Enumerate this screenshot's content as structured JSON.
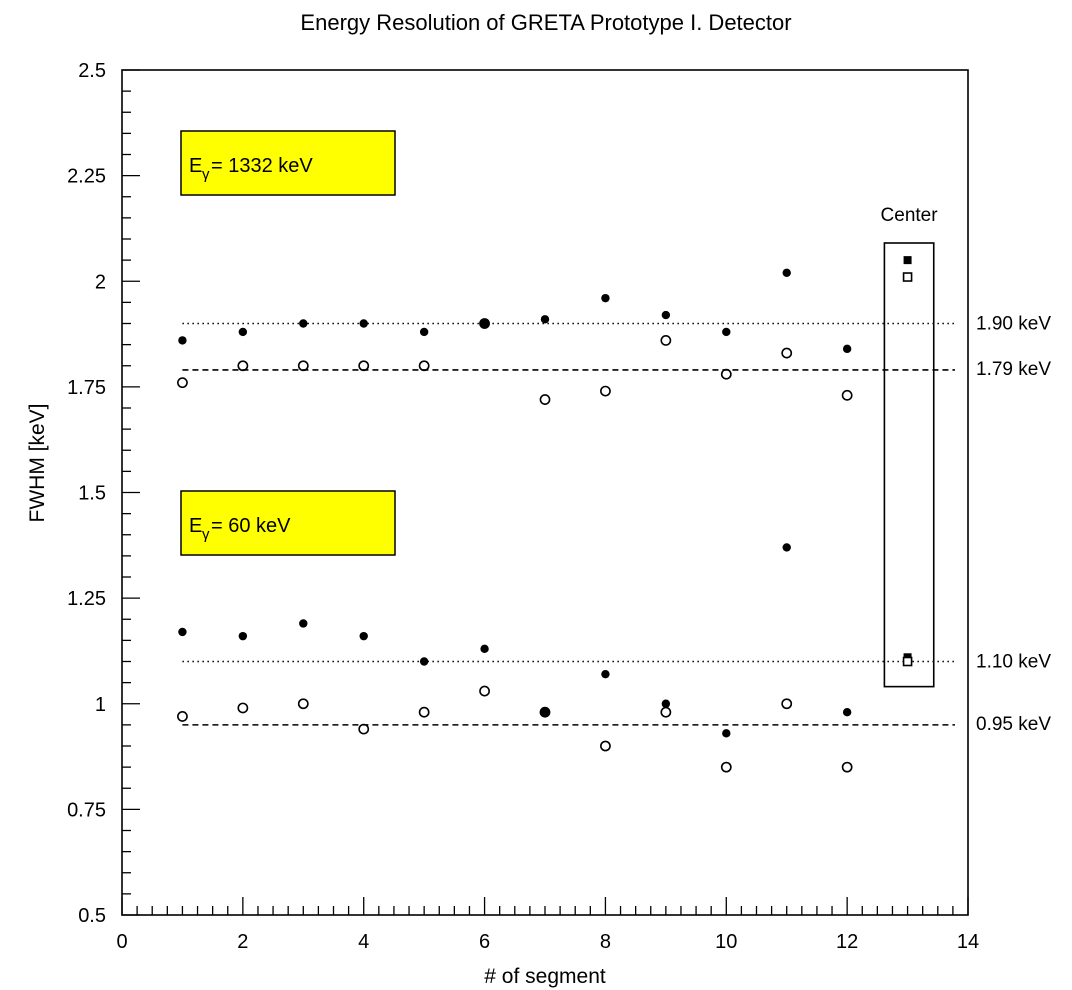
{
  "chart_data": {
    "type": "scatter",
    "title": "Energy Resolution of GRETA Prototype I. Detector",
    "xlabel": "# of segment",
    "ylabel": "FWHM [keV]",
    "xlim": [
      0,
      14
    ],
    "ylim": [
      0.5,
      2.5
    ],
    "x_ticks": [
      0,
      2,
      4,
      6,
      8,
      10,
      12,
      14
    ],
    "x_tick_labels": [
      "0",
      "2",
      "4",
      "6",
      "8",
      "10",
      "12",
      "14"
    ],
    "y_ticks": [
      0.5,
      0.75,
      1,
      1.25,
      1.5,
      1.75,
      2,
      2.25,
      2.5
    ],
    "y_tick_labels": [
      "0.5",
      "0.75",
      "1",
      "1.25",
      "1.5",
      "1.75",
      "2",
      "2.25",
      "2.5"
    ],
    "grid": false,
    "series": [
      {
        "marker": "filled-circle",
        "group": "1332 keV",
        "x": [
          1,
          2,
          3,
          4,
          5,
          6,
          7,
          8,
          9,
          10,
          11,
          12
        ],
        "y": [
          1.86,
          1.88,
          1.9,
          1.9,
          1.88,
          1.9,
          1.91,
          1.96,
          1.92,
          1.88,
          2.02,
          1.84
        ]
      },
      {
        "marker": "open-circle",
        "group": "1332 keV",
        "x": [
          1,
          2,
          3,
          4,
          5,
          6,
          7,
          8,
          9,
          10,
          11,
          12
        ],
        "y": [
          1.76,
          1.8,
          1.8,
          1.8,
          1.8,
          1.9,
          1.72,
          1.74,
          1.86,
          1.78,
          1.83,
          1.73
        ]
      },
      {
        "marker": "filled-circle",
        "group": "60 keV",
        "x": [
          1,
          2,
          3,
          4,
          5,
          6,
          7,
          8,
          9,
          10,
          11,
          12
        ],
        "y": [
          1.17,
          1.16,
          1.19,
          1.16,
          1.1,
          1.13,
          0.98,
          1.07,
          1.0,
          0.93,
          1.37,
          0.98
        ]
      },
      {
        "marker": "open-circle",
        "group": "60 keV",
        "x": [
          1,
          2,
          3,
          4,
          5,
          6,
          7,
          8,
          9,
          10,
          11,
          12
        ],
        "y": [
          0.97,
          0.99,
          1.0,
          0.94,
          0.98,
          1.03,
          0.98,
          0.9,
          0.98,
          0.85,
          1.0,
          0.85
        ]
      },
      {
        "marker": "filled-square",
        "group": "Center",
        "x": [
          13,
          13
        ],
        "y": [
          2.05,
          1.11
        ]
      },
      {
        "marker": "open-square",
        "group": "Center",
        "x": [
          13,
          13
        ],
        "y": [
          2.01,
          1.1
        ]
      }
    ],
    "reference_lines": [
      {
        "y": 1.9,
        "style": "dotted",
        "label": "1.90 keV",
        "x_start": 1
      },
      {
        "y": 1.79,
        "style": "dashed",
        "label": "1.79 keV",
        "x_start": 1
      },
      {
        "y": 1.1,
        "style": "dotted",
        "label": "1.10 keV",
        "x_start": 1
      },
      {
        "y": 0.95,
        "style": "dashed",
        "label": "0.95 keV",
        "x_start": 1
      }
    ],
    "annotations": [
      {
        "kind": "label-box",
        "main": "E",
        "sub": "γ",
        "rest": " = 1332 keV",
        "color": "#ffff00"
      },
      {
        "kind": "label-box",
        "main": "E",
        "sub": "γ",
        "rest": " = 60 keV",
        "color": "#ffff00"
      },
      {
        "kind": "region-box",
        "label": "Center",
        "x_range": [
          12.6,
          13.4
        ],
        "y_range": [
          1.05,
          2.1
        ]
      }
    ]
  }
}
